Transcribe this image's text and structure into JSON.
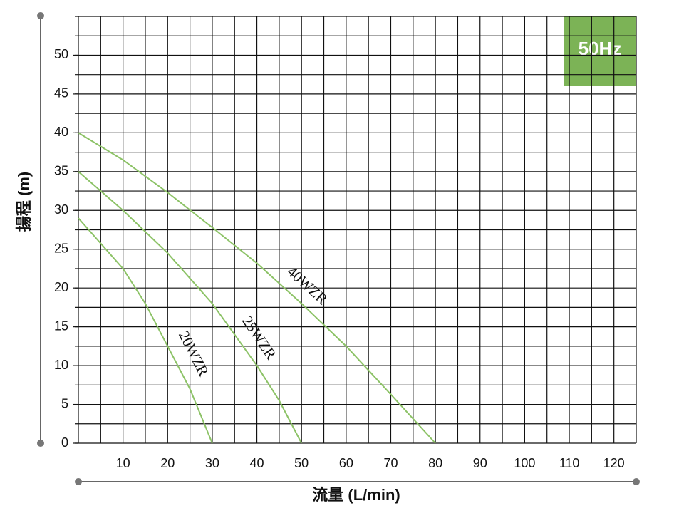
{
  "chart_data": {
    "type": "line",
    "badge": "50Hz",
    "xlabel": "流量 (L/min)",
    "ylabel": "揚程 (m)",
    "xlim": [
      0,
      125
    ],
    "ylim": [
      0,
      55
    ],
    "xticks": [
      10,
      20,
      30,
      40,
      50,
      60,
      70,
      80,
      90,
      100,
      110,
      120
    ],
    "yticks": [
      0,
      5,
      10,
      15,
      20,
      25,
      30,
      35,
      40,
      45,
      50
    ],
    "xgrid": [
      0,
      5,
      10,
      15,
      20,
      25,
      30,
      35,
      40,
      45,
      50,
      55,
      60,
      65,
      70,
      75,
      80,
      85,
      90,
      95,
      100,
      105,
      110,
      115,
      120,
      125
    ],
    "ygrid": [
      0,
      2.5,
      5,
      7.5,
      10,
      12.5,
      15,
      17.5,
      20,
      22.5,
      25,
      27.5,
      30,
      32.5,
      35,
      37.5,
      40,
      42.5,
      45,
      47.5,
      50,
      52.5,
      55
    ],
    "series": [
      {
        "name": "40WZR",
        "color": "#8cc266",
        "x": [
          0,
          10,
          20,
          30,
          40,
          50,
          60,
          70,
          80
        ],
        "values": [
          40,
          36.5,
          32.3,
          27.8,
          23.2,
          18,
          12.5,
          6.3,
          0
        ]
      },
      {
        "name": "25WZR",
        "color": "#8cc266",
        "x": [
          0,
          10,
          20,
          30,
          40,
          45,
          50
        ],
        "values": [
          35,
          30,
          24.5,
          18,
          10,
          5.5,
          0
        ]
      },
      {
        "name": "20WZR",
        "color": "#8cc266",
        "x": [
          0,
          10,
          15,
          20,
          25,
          30
        ],
        "values": [
          29,
          22.5,
          18,
          12.5,
          7,
          0
        ]
      }
    ]
  }
}
